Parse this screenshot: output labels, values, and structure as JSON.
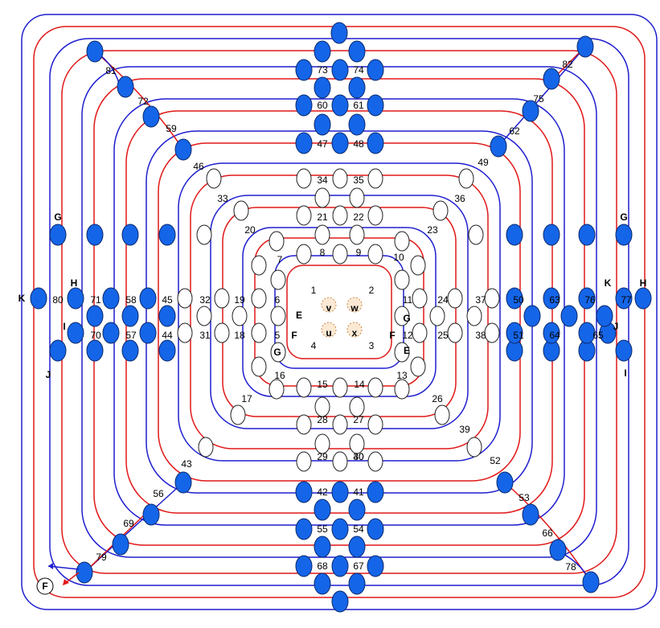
{
  "diagram": {
    "number_labels": [
      "1",
      "2",
      "3",
      "4",
      "5",
      "6",
      "7",
      "8",
      "9",
      "10",
      "11",
      "12",
      "13",
      "14",
      "15",
      "16",
      "17",
      "18",
      "19",
      "20",
      "21",
      "22",
      "23",
      "24",
      "25",
      "26",
      "27",
      "28",
      "29",
      "30",
      "31",
      "32",
      "33",
      "34",
      "35",
      "36",
      "37",
      "38",
      "39",
      "40",
      "41",
      "42",
      "43",
      "44",
      "45",
      "46",
      "47",
      "48",
      "49",
      "50",
      "51",
      "52",
      "53",
      "54",
      "55",
      "56",
      "57",
      "58",
      "59",
      "60",
      "61",
      "62",
      "63",
      "64",
      "65",
      "66",
      "67",
      "68",
      "69",
      "70",
      "71",
      "72",
      "73",
      "74",
      "75",
      "76",
      "77",
      "78",
      "79",
      "80",
      "81",
      "82"
    ],
    "letter_labels": [
      "G",
      "G",
      "H",
      "H",
      "I",
      "I",
      "J",
      "J",
      "K",
      "K",
      "E",
      "E",
      "F",
      "F",
      "G",
      "G",
      "v",
      "w",
      "u",
      "x",
      "F"
    ],
    "colors": {
      "blue_curve": "#1f1fcf",
      "red_curve": "#e01818",
      "filled_node": "#1565e8"
    }
  }
}
